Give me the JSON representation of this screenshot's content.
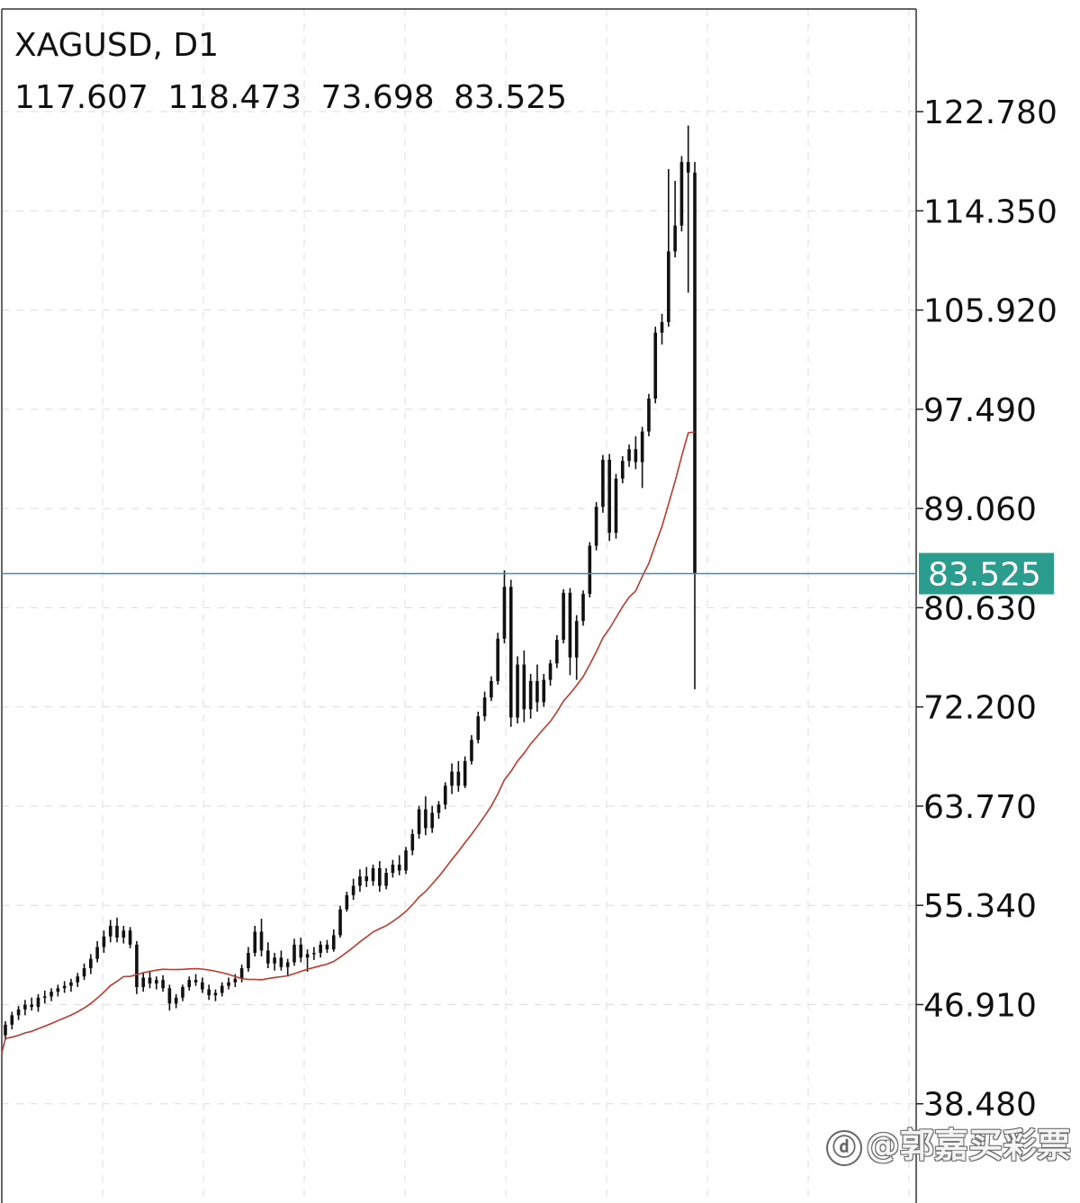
{
  "chart_data": {
    "type": "candlestick",
    "symbol": "XAGUSD, D1",
    "ohlc": {
      "open": "117.607",
      "high": "118.473",
      "low": "73.698",
      "close": "83.525"
    },
    "current_price": "83.525",
    "y_ticks": [
      "122.780",
      "114.350",
      "105.920",
      "97.490",
      "89.060",
      "80.630",
      "72.200",
      "63.770",
      "55.340",
      "46.910",
      "38.480"
    ],
    "ylim": [
      30.05,
      131.5
    ],
    "colors": {
      "candle": "#111111",
      "ma": "#c0392b",
      "price_line": "#3a8fb8",
      "price_label_bg": "#2a9d8f",
      "grid": "#dcdcdc"
    },
    "candles": [
      [
        44.3,
        45.5,
        43.9,
        45.2
      ],
      [
        45.2,
        46.3,
        44.8,
        46.0
      ],
      [
        46.0,
        46.8,
        45.6,
        46.5
      ],
      [
        46.5,
        47.3,
        46.0,
        46.9
      ],
      [
        46.9,
        47.5,
        46.4,
        46.7
      ],
      [
        46.7,
        47.8,
        46.3,
        47.5
      ],
      [
        47.5,
        48.1,
        47.0,
        47.6
      ],
      [
        47.6,
        48.3,
        47.2,
        48.0
      ],
      [
        48.0,
        48.6,
        47.6,
        48.3
      ],
      [
        48.3,
        48.9,
        47.9,
        48.5
      ],
      [
        48.5,
        49.1,
        48.0,
        48.8
      ],
      [
        48.8,
        49.6,
        48.4,
        49.3
      ],
      [
        49.3,
        50.4,
        49.0,
        50.0
      ],
      [
        50.0,
        51.2,
        49.5,
        50.8
      ],
      [
        50.8,
        52.3,
        50.5,
        51.8
      ],
      [
        51.8,
        53.2,
        51.3,
        52.7
      ],
      [
        52.7,
        54.1,
        52.2,
        53.6
      ],
      [
        53.6,
        54.3,
        52.2,
        52.6
      ],
      [
        52.6,
        53.6,
        52.1,
        53.2
      ],
      [
        53.2,
        53.5,
        51.7,
        52.0
      ],
      [
        52.0,
        52.3,
        47.8,
        48.4
      ],
      [
        48.4,
        49.6,
        48.0,
        49.2
      ],
      [
        49.2,
        49.8,
        48.3,
        48.7
      ],
      [
        48.7,
        49.3,
        48.2,
        49.0
      ],
      [
        49.0,
        49.4,
        48.0,
        48.3
      ],
      [
        48.3,
        48.6,
        46.4,
        47.0
      ],
      [
        47.0,
        47.8,
        46.6,
        47.5
      ],
      [
        47.5,
        48.6,
        47.2,
        48.4
      ],
      [
        48.4,
        49.3,
        48.1,
        49.0
      ],
      [
        49.0,
        49.5,
        48.5,
        48.8
      ],
      [
        48.8,
        49.2,
        47.9,
        48.2
      ],
      [
        48.2,
        48.6,
        47.3,
        47.7
      ],
      [
        47.7,
        48.2,
        47.2,
        47.9
      ],
      [
        47.9,
        48.8,
        47.6,
        48.5
      ],
      [
        48.5,
        49.2,
        48.2,
        48.8
      ],
      [
        48.8,
        49.5,
        48.4,
        49.1
      ],
      [
        49.1,
        50.3,
        48.8,
        50.0
      ],
      [
        50.0,
        51.8,
        49.7,
        51.3
      ],
      [
        51.3,
        53.6,
        51.0,
        53.1
      ],
      [
        53.1,
        54.2,
        51.0,
        51.5
      ],
      [
        51.5,
        52.2,
        50.0,
        50.4
      ],
      [
        50.4,
        51.3,
        49.8,
        50.9
      ],
      [
        50.9,
        51.5,
        49.8,
        50.1
      ],
      [
        50.1,
        50.8,
        49.4,
        50.5
      ],
      [
        50.5,
        52.5,
        50.2,
        52.0
      ],
      [
        52.0,
        52.6,
        50.5,
        50.9
      ],
      [
        50.9,
        51.6,
        49.7,
        51.2
      ],
      [
        51.2,
        51.8,
        50.7,
        51.3
      ],
      [
        51.3,
        52.3,
        50.9,
        52.0
      ],
      [
        52.0,
        52.4,
        51.3,
        51.6
      ],
      [
        51.6,
        53.3,
        51.4,
        52.8
      ],
      [
        52.8,
        55.3,
        52.6,
        55.0
      ],
      [
        55.0,
        56.5,
        54.8,
        56.2
      ],
      [
        56.2,
        57.6,
        55.8,
        57.0
      ],
      [
        57.0,
        58.4,
        56.5,
        57.8
      ],
      [
        57.8,
        58.6,
        56.9,
        57.4
      ],
      [
        57.4,
        58.8,
        57.0,
        58.5
      ],
      [
        58.5,
        59.1,
        56.5,
        57.0
      ],
      [
        57.0,
        58.5,
        56.7,
        58.1
      ],
      [
        58.1,
        59.2,
        57.7,
        58.8
      ],
      [
        58.8,
        59.6,
        57.9,
        58.3
      ],
      [
        58.3,
        60.3,
        58.0,
        60.0
      ],
      [
        60.0,
        61.8,
        59.6,
        61.4
      ],
      [
        61.4,
        63.8,
        61.0,
        63.5
      ],
      [
        63.5,
        64.6,
        61.3,
        61.9
      ],
      [
        61.9,
        63.8,
        61.5,
        63.2
      ],
      [
        63.2,
        64.2,
        62.7,
        63.9
      ],
      [
        63.9,
        65.8,
        63.5,
        65.5
      ],
      [
        65.5,
        67.4,
        64.8,
        66.7
      ],
      [
        66.7,
        67.6,
        65.0,
        65.5
      ],
      [
        65.5,
        68.0,
        65.3,
        67.6
      ],
      [
        67.6,
        69.8,
        67.3,
        69.4
      ],
      [
        69.4,
        71.8,
        69.1,
        71.4
      ],
      [
        71.4,
        73.5,
        71.0,
        73.0
      ],
      [
        73.0,
        74.8,
        72.7,
        74.4
      ],
      [
        74.4,
        78.5,
        74.1,
        78.0
      ],
      [
        78.0,
        83.8,
        77.6,
        82.4
      ],
      [
        82.4,
        83.0,
        70.5,
        71.3
      ],
      [
        71.3,
        76.5,
        70.8,
        75.8
      ],
      [
        75.8,
        77.0,
        70.9,
        72.0
      ],
      [
        72.0,
        75.0,
        71.2,
        74.4
      ],
      [
        74.4,
        75.8,
        71.8,
        72.6
      ],
      [
        72.6,
        75.0,
        72.2,
        74.5
      ],
      [
        74.5,
        76.2,
        74.0,
        75.9
      ],
      [
        75.9,
        78.3,
        75.5,
        77.9
      ],
      [
        77.9,
        82.2,
        77.6,
        81.9
      ],
      [
        81.9,
        82.3,
        74.9,
        76.4
      ],
      [
        76.4,
        80.0,
        74.5,
        79.5
      ],
      [
        79.5,
        82.1,
        79.1,
        81.8
      ],
      [
        81.8,
        86.2,
        81.5,
        85.9
      ],
      [
        85.9,
        89.6,
        85.5,
        89.2
      ],
      [
        89.2,
        93.6,
        88.7,
        93.2
      ],
      [
        93.2,
        93.7,
        86.3,
        87.0
      ],
      [
        87.0,
        92.0,
        86.5,
        91.6
      ],
      [
        91.6,
        93.5,
        91.2,
        93.1
      ],
      [
        93.1,
        94.5,
        92.6,
        94.1
      ],
      [
        94.1,
        95.2,
        92.4,
        93.0
      ],
      [
        93.0,
        96.0,
        90.8,
        95.6
      ],
      [
        95.6,
        98.8,
        95.2,
        98.4
      ],
      [
        98.4,
        104.5,
        98.0,
        104.0
      ],
      [
        104.0,
        105.6,
        103.0,
        104.9
      ],
      [
        104.9,
        117.9,
        104.5,
        110.9
      ],
      [
        110.9,
        116.9,
        110.4,
        113.1
      ],
      [
        113.1,
        119.0,
        112.6,
        118.5
      ],
      [
        118.5,
        121.6,
        107.4,
        117.6
      ],
      [
        117.6,
        118.5,
        73.7,
        83.5
      ]
    ]
  },
  "watermark": "@郭嘉买彩票"
}
